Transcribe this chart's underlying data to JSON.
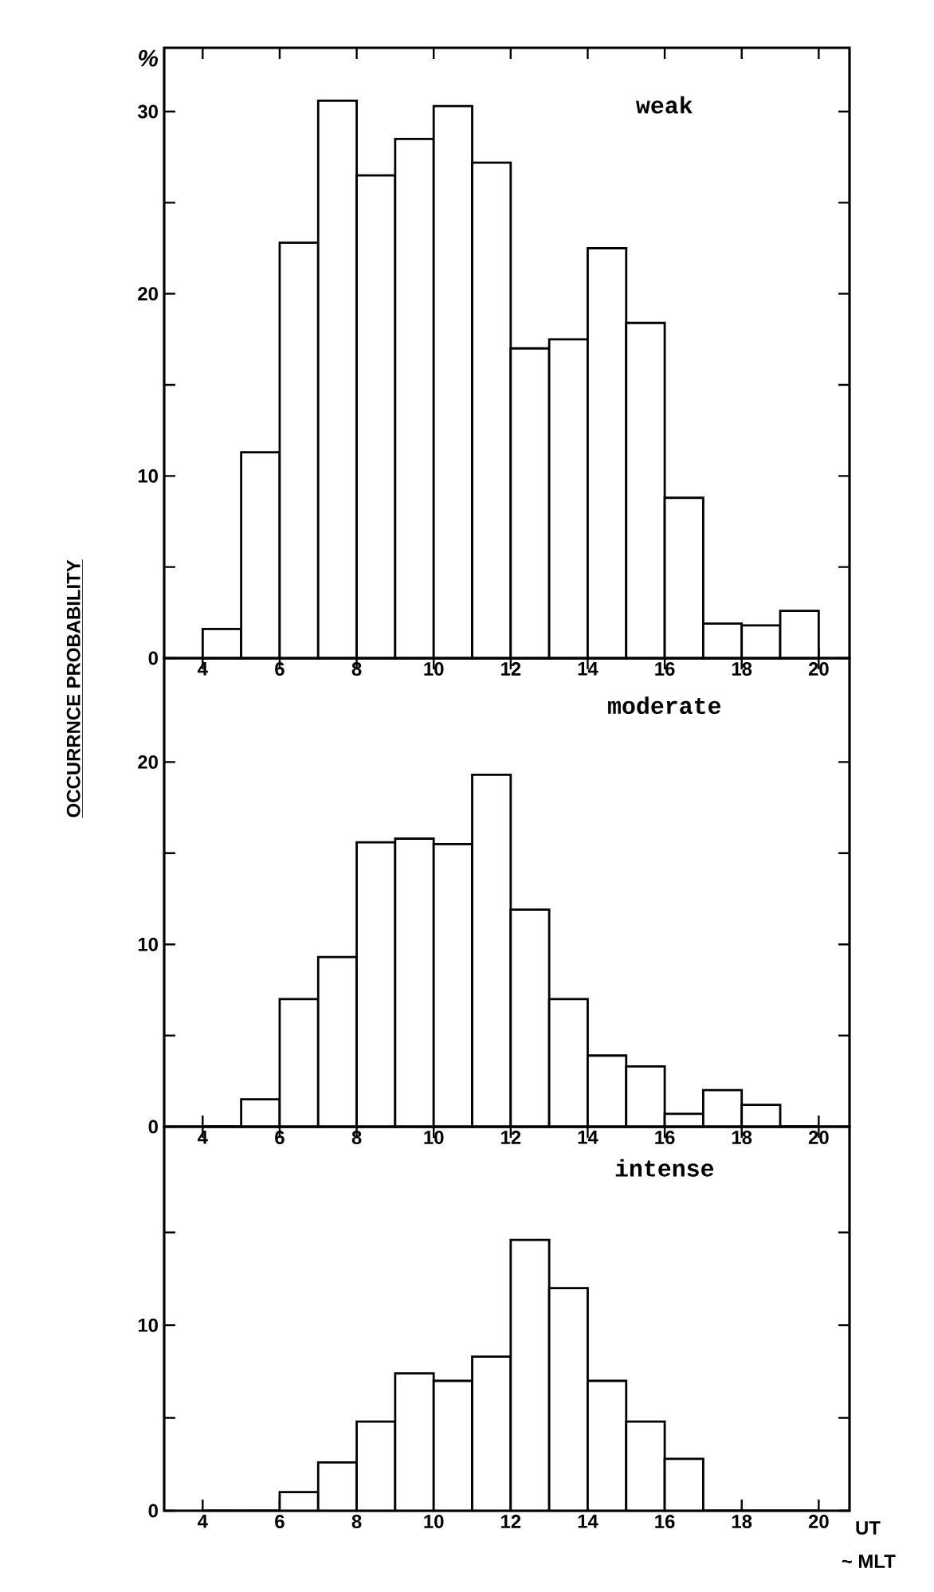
{
  "chart_data": [
    {
      "type": "histogram",
      "ylabel": "OCCURRNCE PROBABILITY",
      "annotations": [
        "weak",
        "%"
      ],
      "bins": [
        4,
        5,
        6,
        7,
        8,
        9,
        10,
        11,
        12,
        13,
        14,
        15,
        16,
        17,
        18,
        19,
        20
      ],
      "values": [
        1.6,
        11.3,
        22.8,
        30.6,
        26.5,
        28.5,
        30.3,
        27.2,
        17.0,
        17.5,
        22.5,
        18.4,
        8.8,
        1.9,
        1.8,
        2.6
      ],
      "xlim": [
        3,
        20.8
      ],
      "ylim": [
        0,
        33.5
      ],
      "xticks": [
        4,
        6,
        8,
        10,
        12,
        14,
        16,
        18,
        20
      ],
      "yticks": [
        0,
        {
          "value": 5,
          "label": null
        },
        10,
        {
          "value": 15,
          "label": null
        },
        20,
        {
          "value": 25,
          "label": null
        },
        30
      ]
    },
    {
      "type": "histogram",
      "annotations": [
        "moderate"
      ],
      "bins": [
        4,
        5,
        6,
        7,
        8,
        9,
        10,
        11,
        12,
        13,
        14,
        15,
        16,
        17,
        18,
        19,
        20
      ],
      "values": [
        0,
        1.5,
        7.0,
        9.3,
        15.6,
        15.8,
        15.5,
        19.3,
        11.9,
        7.0,
        3.9,
        3.3,
        0.7,
        2.0,
        1.2,
        0
      ],
      "xlim": [
        3,
        20.8
      ],
      "ylim": [
        0,
        25.7
      ],
      "xticks": [
        4,
        6,
        8,
        10,
        12,
        14,
        16,
        18,
        20
      ],
      "yticks": [
        0,
        {
          "value": 5,
          "label": null
        },
        10,
        {
          "value": 15,
          "label": null
        },
        20
      ]
    },
    {
      "type": "histogram",
      "xlabel": "UT",
      "annotations": [
        "intense",
        "~ MLT"
      ],
      "bins": [
        4,
        5,
        6,
        7,
        8,
        9,
        10,
        11,
        12,
        13,
        14,
        15,
        16,
        17,
        18,
        19,
        20
      ],
      "values": [
        0,
        0,
        1.0,
        2.6,
        4.8,
        7.4,
        7.0,
        8.3,
        14.6,
        12.0,
        7.0,
        4.8,
        2.8,
        0,
        0,
        0
      ],
      "xlim": [
        3,
        20.8
      ],
      "ylim": [
        0,
        20.7
      ],
      "xticks": [
        4,
        6,
        8,
        10,
        12,
        14,
        16,
        18,
        20
      ],
      "yticks": [
        0,
        {
          "value": 5,
          "label": null
        },
        10,
        {
          "value": 15,
          "label": null
        }
      ]
    }
  ]
}
